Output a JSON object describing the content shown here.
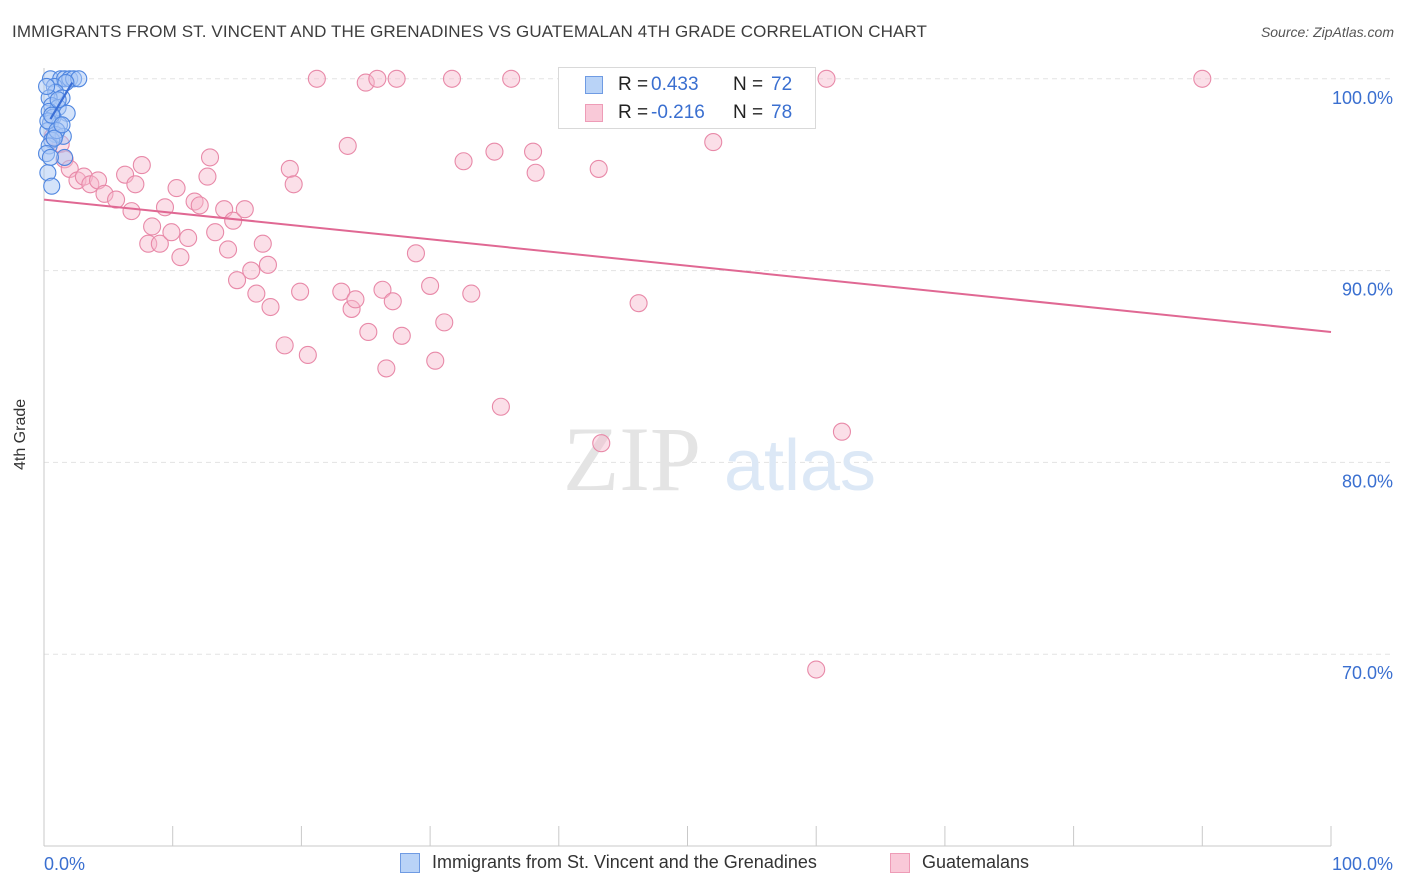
{
  "title": "IMMIGRANTS FROM ST. VINCENT AND THE GRENADINES VS GUATEMALAN 4TH GRADE CORRELATION CHART",
  "source": "Source: ZipAtlas.com",
  "watermark": {
    "zip": "ZIP",
    "atlas": "atlas"
  },
  "legend": {
    "blue": {
      "r_label": "R =",
      "r_value": "0.433",
      "n_label": "N =",
      "n_value": "72"
    },
    "pink": {
      "r_label": "R =",
      "r_value": "-0.216",
      "n_label": "N =",
      "n_value": "78"
    }
  },
  "bottom_legend": {
    "blue": "Immigrants from St. Vincent and the Grenadines",
    "pink": "Guatemalans"
  },
  "colors": {
    "blue_fill": "#a9c8f5",
    "blue_stroke": "#4f86e0",
    "blue_line": "#3b6fd6",
    "pink_fill": "#f6b8cc",
    "pink_stroke": "#e889a8",
    "pink_line": "#e06893",
    "axis_text": "#3a6fd0",
    "grid": "#e3e3e3"
  },
  "chart_data": {
    "type": "scatter",
    "title": "IMMIGRANTS FROM ST. VINCENT AND THE GRENADINES VS GUATEMALAN 4TH GRADE CORRELATION CHART",
    "xlabel": "",
    "ylabel": "4th Grade",
    "xlim": [
      0,
      100
    ],
    "ylim": [
      60,
      101.5
    ],
    "x_tick_labels": [
      "0.0%",
      "100.0%"
    ],
    "y_ticks": [
      70,
      80,
      90,
      100
    ],
    "y_tick_labels": [
      "70.0%",
      "80.0%",
      "90.0%",
      "100.0%"
    ],
    "series": [
      {
        "name": "Immigrants from St. Vincent and the Grenadines",
        "R": 0.433,
        "N": 72,
        "trend": {
          "x": [
            0.5,
            2.2
          ],
          "y": [
            97.9,
            99.8
          ]
        },
        "points": [
          {
            "x": 0.5,
            "y": 100.0
          },
          {
            "x": 1.3,
            "y": 100.0
          },
          {
            "x": 1.6,
            "y": 100.0
          },
          {
            "x": 2.0,
            "y": 100.0
          },
          {
            "x": 2.3,
            "y": 100.0
          },
          {
            "x": 2.7,
            "y": 100.0
          },
          {
            "x": 0.8,
            "y": 99.6
          },
          {
            "x": 1.7,
            "y": 99.8
          },
          {
            "x": 0.9,
            "y": 99.3
          },
          {
            "x": 1.4,
            "y": 99.0
          },
          {
            "x": 0.4,
            "y": 99.0
          },
          {
            "x": 0.6,
            "y": 98.6
          },
          {
            "x": 1.1,
            "y": 98.5
          },
          {
            "x": 0.4,
            "y": 98.3
          },
          {
            "x": 1.8,
            "y": 98.2
          },
          {
            "x": 0.7,
            "y": 98.0
          },
          {
            "x": 0.5,
            "y": 97.7
          },
          {
            "x": 1.2,
            "y": 97.6
          },
          {
            "x": 0.3,
            "y": 97.3
          },
          {
            "x": 0.9,
            "y": 97.1
          },
          {
            "x": 1.5,
            "y": 97.0
          },
          {
            "x": 0.6,
            "y": 96.8
          },
          {
            "x": 0.4,
            "y": 96.5
          },
          {
            "x": 0.2,
            "y": 96.1
          },
          {
            "x": 1.6,
            "y": 95.9
          },
          {
            "x": 0.5,
            "y": 95.9
          },
          {
            "x": 0.3,
            "y": 95.1
          },
          {
            "x": 0.6,
            "y": 94.4
          },
          {
            "x": 0.3,
            "y": 97.8
          },
          {
            "x": 1.0,
            "y": 97.3
          },
          {
            "x": 0.8,
            "y": 96.9
          },
          {
            "x": 1.1,
            "y": 98.9
          },
          {
            "x": 0.2,
            "y": 99.6
          },
          {
            "x": 0.6,
            "y": 98.1
          },
          {
            "x": 1.4,
            "y": 97.6
          }
        ]
      },
      {
        "name": "Guatemalans",
        "R": -0.216,
        "N": 78,
        "trend": {
          "x": [
            0.0,
            100.0
          ],
          "y": [
            93.7,
            86.8
          ]
        },
        "points": [
          {
            "x": 0.7,
            "y": 97.0
          },
          {
            "x": 1.3,
            "y": 96.6
          },
          {
            "x": 1.6,
            "y": 95.8
          },
          {
            "x": 2.0,
            "y": 95.3
          },
          {
            "x": 2.6,
            "y": 94.7
          },
          {
            "x": 3.1,
            "y": 94.9
          },
          {
            "x": 3.6,
            "y": 94.5
          },
          {
            "x": 4.2,
            "y": 94.7
          },
          {
            "x": 4.7,
            "y": 94.0
          },
          {
            "x": 5.6,
            "y": 93.7
          },
          {
            "x": 6.3,
            "y": 95.0
          },
          {
            "x": 6.8,
            "y": 93.1
          },
          {
            "x": 7.1,
            "y": 94.5
          },
          {
            "x": 7.6,
            "y": 95.5
          },
          {
            "x": 8.1,
            "y": 91.4
          },
          {
            "x": 8.4,
            "y": 92.3
          },
          {
            "x": 9.0,
            "y": 91.4
          },
          {
            "x": 9.4,
            "y": 93.3
          },
          {
            "x": 9.9,
            "y": 92.0
          },
          {
            "x": 10.3,
            "y": 94.3
          },
          {
            "x": 10.6,
            "y": 90.7
          },
          {
            "x": 11.2,
            "y": 91.7
          },
          {
            "x": 11.7,
            "y": 93.6
          },
          {
            "x": 12.1,
            "y": 93.4
          },
          {
            "x": 12.7,
            "y": 94.9
          },
          {
            "x": 12.9,
            "y": 95.9
          },
          {
            "x": 13.3,
            "y": 92.0
          },
          {
            "x": 14.0,
            "y": 93.2
          },
          {
            "x": 14.3,
            "y": 91.1
          },
          {
            "x": 14.7,
            "y": 92.6
          },
          {
            "x": 15.0,
            "y": 89.5
          },
          {
            "x": 15.6,
            "y": 93.2
          },
          {
            "x": 16.1,
            "y": 90.0
          },
          {
            "x": 16.5,
            "y": 88.8
          },
          {
            "x": 17.0,
            "y": 91.4
          },
          {
            "x": 17.4,
            "y": 90.3
          },
          {
            "x": 17.6,
            "y": 88.1
          },
          {
            "x": 18.7,
            "y": 86.1
          },
          {
            "x": 19.1,
            "y": 95.3
          },
          {
            "x": 19.4,
            "y": 94.5
          },
          {
            "x": 19.9,
            "y": 88.9
          },
          {
            "x": 20.5,
            "y": 85.6
          },
          {
            "x": 21.2,
            "y": 100.0
          },
          {
            "x": 23.1,
            "y": 88.9
          },
          {
            "x": 23.6,
            "y": 96.5
          },
          {
            "x": 23.9,
            "y": 88.0
          },
          {
            "x": 24.2,
            "y": 88.5
          },
          {
            "x": 25.0,
            "y": 99.8
          },
          {
            "x": 25.2,
            "y": 86.8
          },
          {
            "x": 25.9,
            "y": 100.0
          },
          {
            "x": 26.3,
            "y": 89.0
          },
          {
            "x": 26.6,
            "y": 84.9
          },
          {
            "x": 27.1,
            "y": 88.4
          },
          {
            "x": 27.4,
            "y": 100.0
          },
          {
            "x": 27.8,
            "y": 86.6
          },
          {
            "x": 30.0,
            "y": 89.2
          },
          {
            "x": 30.4,
            "y": 85.3
          },
          {
            "x": 28.9,
            "y": 90.9
          },
          {
            "x": 31.1,
            "y": 87.3
          },
          {
            "x": 31.7,
            "y": 100.0
          },
          {
            "x": 32.6,
            "y": 95.7
          },
          {
            "x": 33.2,
            "y": 88.8
          },
          {
            "x": 35.0,
            "y": 96.2
          },
          {
            "x": 35.5,
            "y": 82.9
          },
          {
            "x": 36.3,
            "y": 100.0
          },
          {
            "x": 38.0,
            "y": 96.2
          },
          {
            "x": 38.2,
            "y": 95.1
          },
          {
            "x": 43.1,
            "y": 95.3
          },
          {
            "x": 43.3,
            "y": 81.0
          },
          {
            "x": 46.2,
            "y": 88.3
          },
          {
            "x": 52.0,
            "y": 96.7
          },
          {
            "x": 60.8,
            "y": 100.0
          },
          {
            "x": 62.0,
            "y": 81.6
          },
          {
            "x": 60.0,
            "y": 69.2
          },
          {
            "x": 90.0,
            "y": 100.0
          }
        ]
      }
    ]
  }
}
